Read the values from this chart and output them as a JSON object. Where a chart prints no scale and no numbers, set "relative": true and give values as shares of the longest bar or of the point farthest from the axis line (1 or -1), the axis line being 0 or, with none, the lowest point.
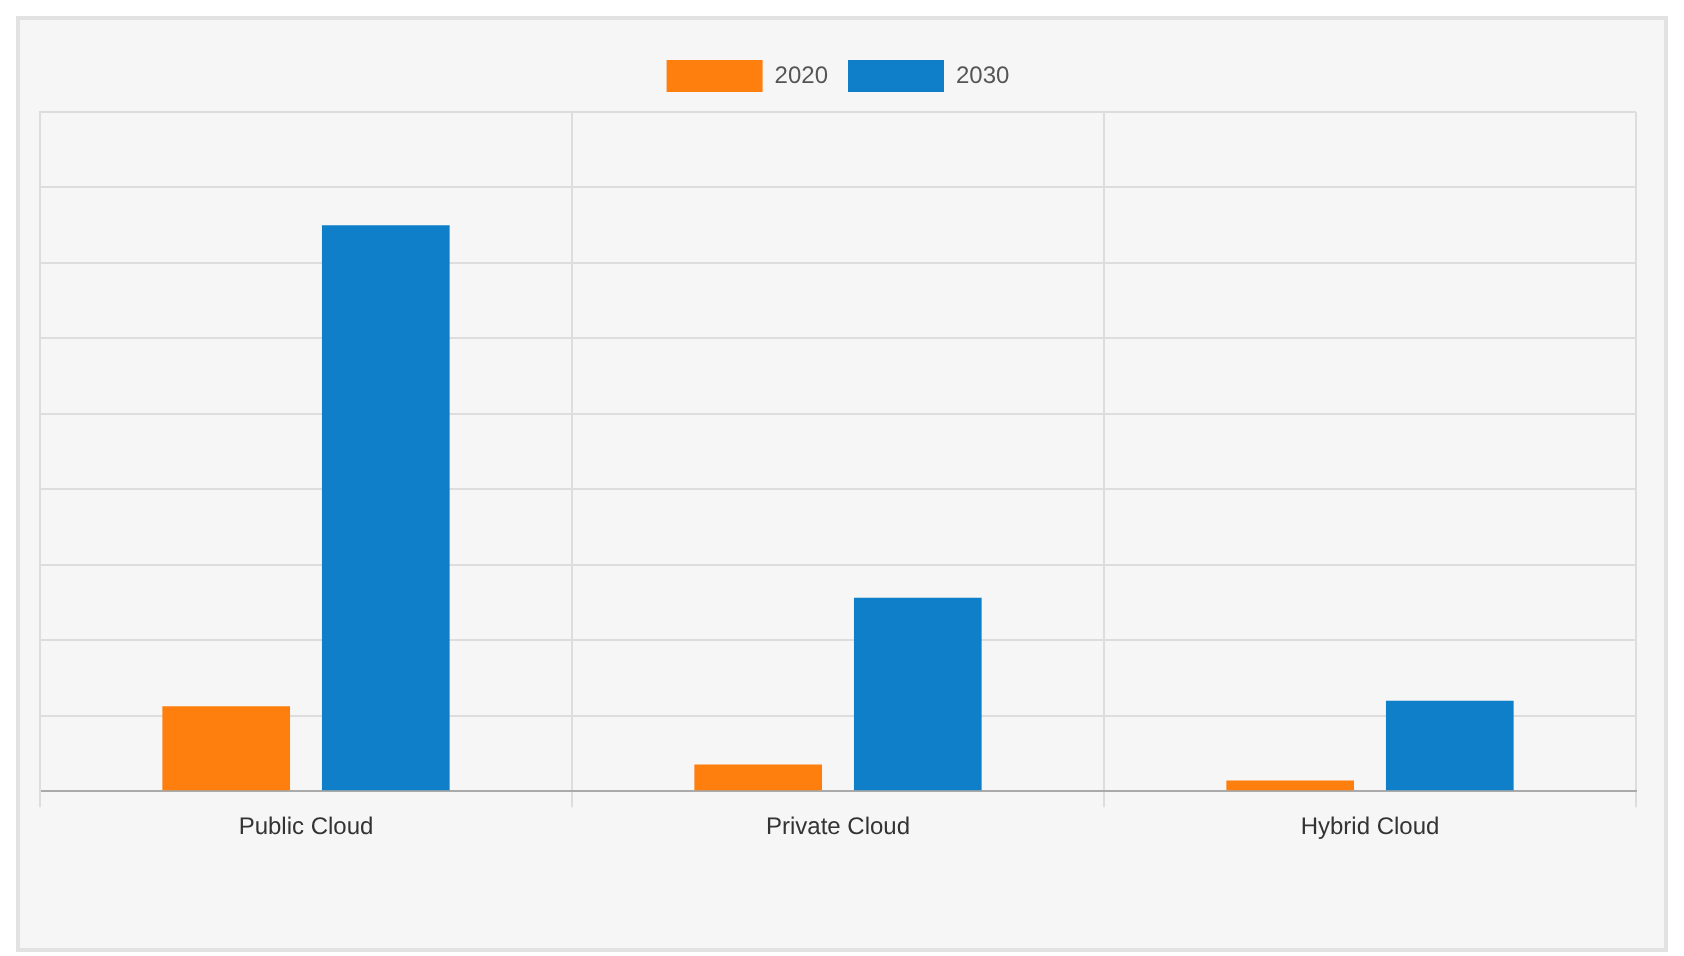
{
  "chart_data": {
    "type": "bar",
    "categories": [
      "Public Cloud",
      "Private Cloud",
      "Hybrid Cloud"
    ],
    "relative": true,
    "series": [
      {
        "name": "2020",
        "color": "#ff7f0e",
        "values": [
          0.15,
          0.047,
          0.019
        ]
      },
      {
        "name": "2030",
        "color": "#0e7fc8",
        "values": [
          1,
          0.342,
          0.16
        ]
      }
    ],
    "grid": true,
    "legend": "top"
  }
}
